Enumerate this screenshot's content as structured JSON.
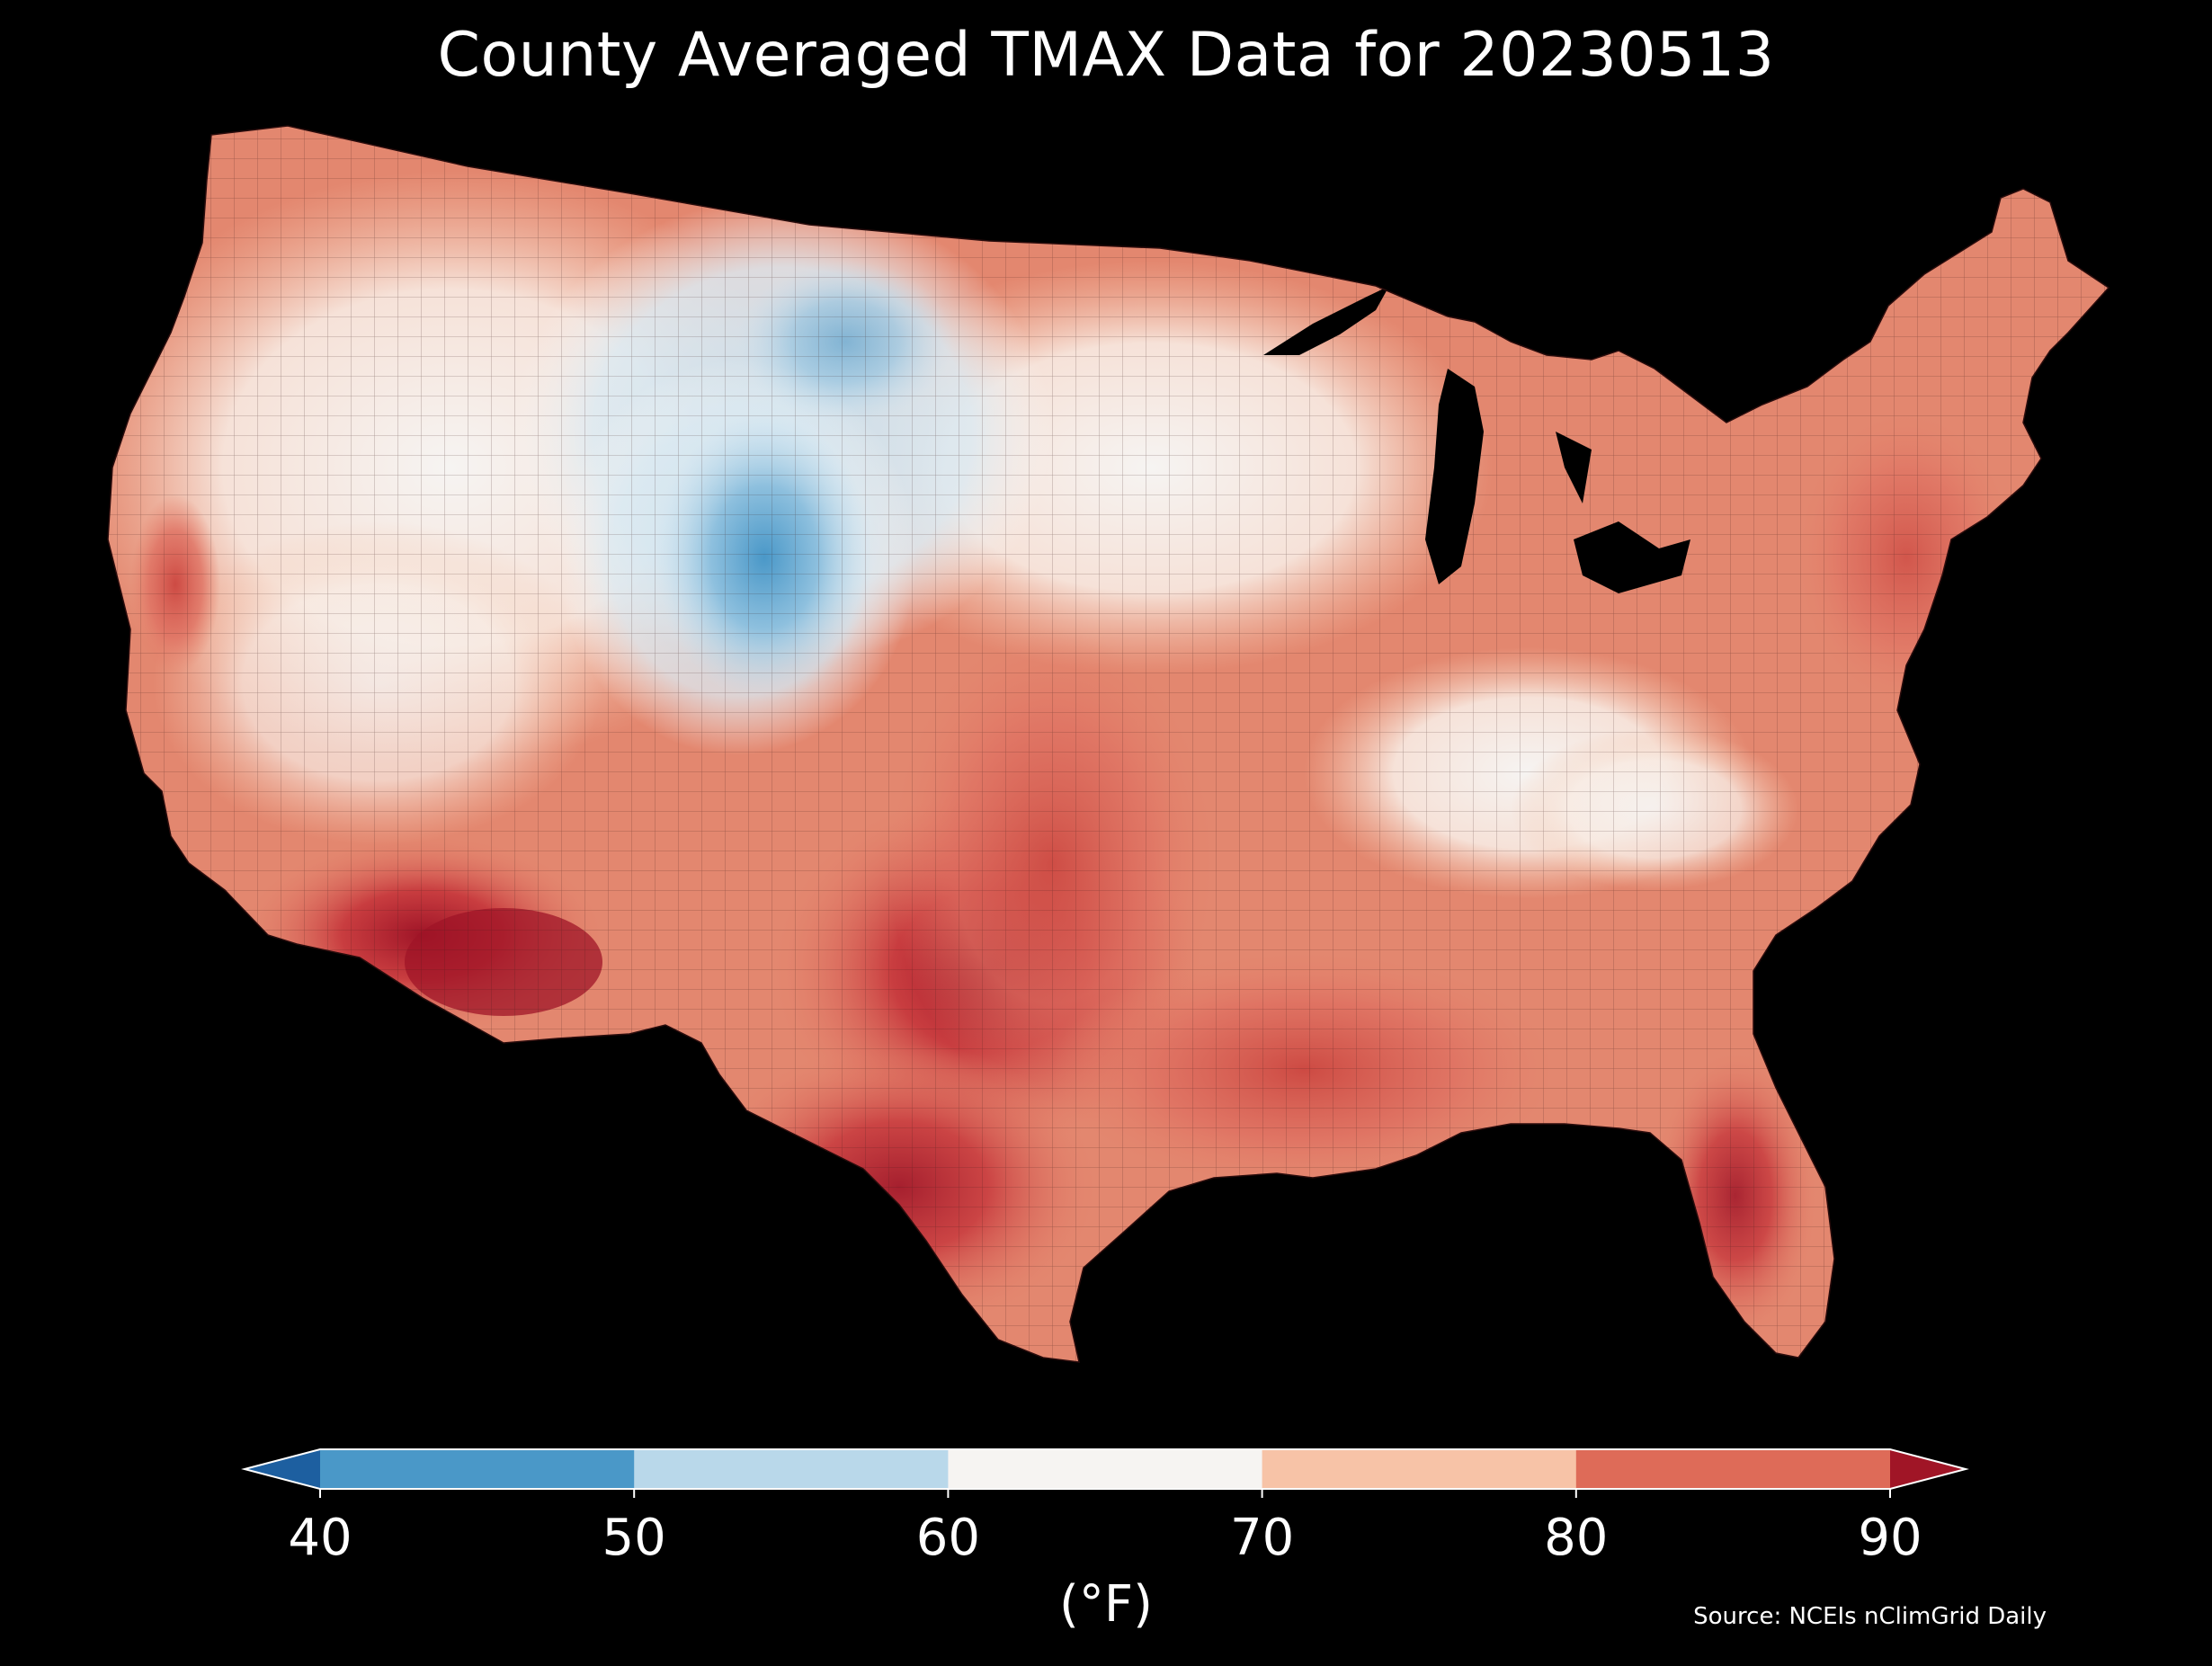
{
  "title": "County Averaged TMAX Data for 20230513",
  "colorbar": {
    "unit_label": "(°F)",
    "ticks": [
      "40",
      "50",
      "60",
      "70",
      "80",
      "90"
    ],
    "bins": [
      {
        "range": "<40",
        "color": "#1d5fa0"
      },
      {
        "range": "40-50",
        "color": "#4a98c8"
      },
      {
        "range": "50-60",
        "color": "#b9d8ea"
      },
      {
        "range": "60-70",
        "color": "#f6f4f2"
      },
      {
        "range": "70-80",
        "color": "#f7c3a7"
      },
      {
        "range": "80-90",
        "color": "#de6b58"
      },
      {
        "range": ">90",
        "color": "#a01526"
      }
    ],
    "extend": "both"
  },
  "source": "Source: NCEIs nClimGrid Daily",
  "map": {
    "region": "Contiguous United States, county-level choropleth",
    "background": "#000000",
    "palette": {
      "cold": "#6fa9d2",
      "cool": "#c8e0ee",
      "mild": "#f6f4f2",
      "warm": "#f6c7ae",
      "hot": "#e5806a",
      "hotter": "#cd4a43",
      "hottest": "#9f1427"
    }
  }
}
